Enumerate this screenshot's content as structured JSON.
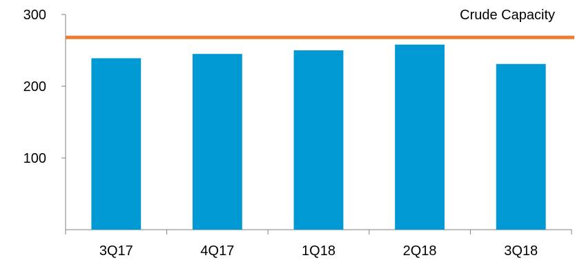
{
  "chart_data": {
    "type": "bar",
    "categories": [
      "3Q17",
      "4Q17",
      "1Q18",
      "2Q18",
      "3Q18"
    ],
    "values": [
      239,
      245,
      250,
      258,
      231
    ],
    "ylim": [
      0,
      300
    ],
    "yticks": [
      100,
      200,
      300
    ],
    "reference_line": {
      "label": "Crude Capacity",
      "value": 268,
      "color": "#ED7D31"
    },
    "bar_color": "#0099D4",
    "grid": false,
    "legend": "none"
  }
}
